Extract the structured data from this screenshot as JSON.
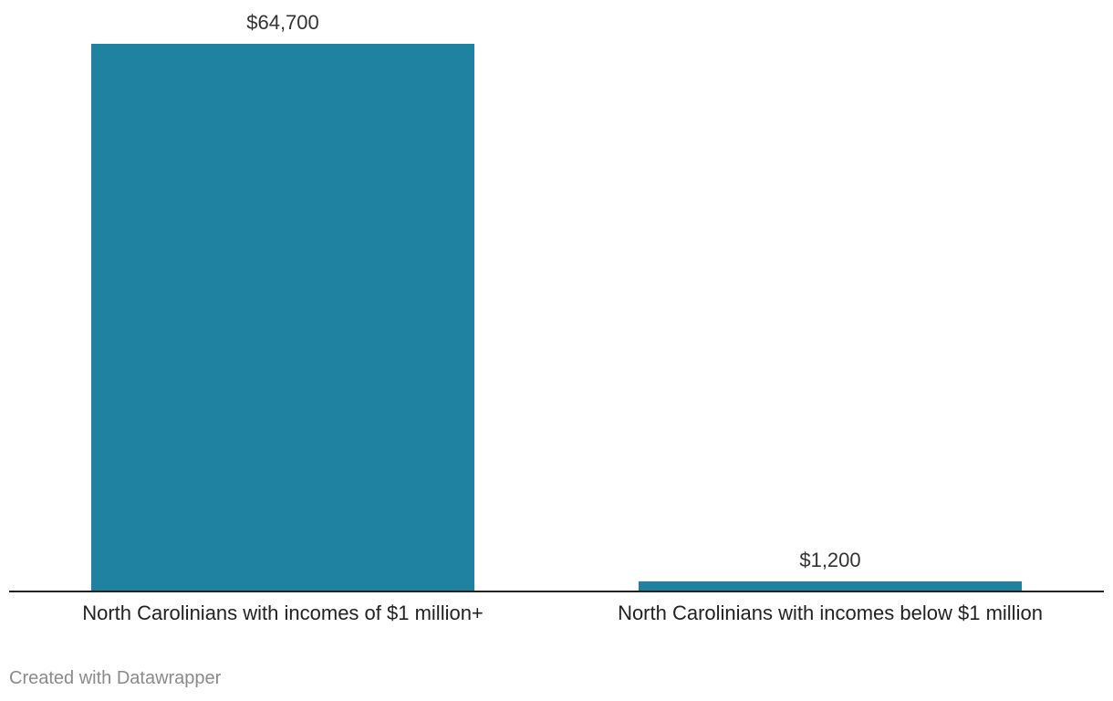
{
  "chart_data": {
    "type": "bar",
    "categories": [
      "North Carolinians with incomes of $1 million+",
      "North Carolinians with incomes below $1 million"
    ],
    "values": [
      64700,
      1200
    ],
    "value_labels": [
      "$64,700",
      "$1,200"
    ],
    "ylim": [
      0,
      64700
    ],
    "grid": false,
    "bar_color": "#1f82a1",
    "baseline_color": "#222222"
  },
  "footer": {
    "credit": "Created with Datawrapper"
  }
}
